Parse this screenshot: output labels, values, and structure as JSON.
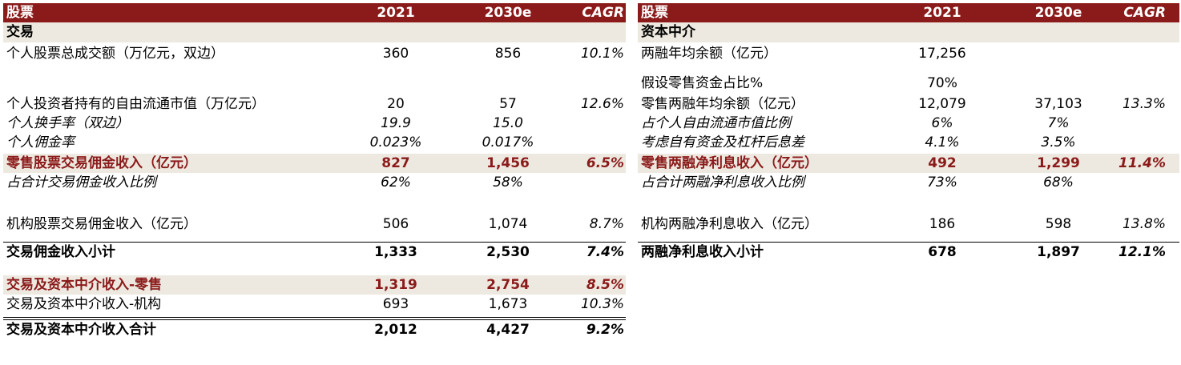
{
  "left": {
    "header": {
      "label": "股票",
      "y1": "2021",
      "y2": "2030e",
      "cagr": "CAGR"
    },
    "section": "交易",
    "rows": [
      {
        "label": "个人股票总成交额（万亿元，双边）",
        "v1": "360",
        "v2": "856",
        "cagr": "10.1%"
      },
      {
        "label": "个人投资者持有的自由流通市值（万亿元）",
        "v1": "20",
        "v2": "57",
        "cagr": "12.6%"
      },
      {
        "label": "个人换手率（双边）",
        "v1": "19.9",
        "v2": "15.0",
        "cagr": ""
      },
      {
        "label": "个人佣金率",
        "v1": "0.023%",
        "v2": "0.017%",
        "cagr": ""
      },
      {
        "label": "零售股票交易佣金收入（亿元）",
        "v1": "827",
        "v2": "1,456",
        "cagr": "6.5%"
      },
      {
        "label": "占合计交易佣金收入比例",
        "v1": "62%",
        "v2": "58%",
        "cagr": ""
      },
      {
        "label": "机构股票交易佣金收入（亿元）",
        "v1": "506",
        "v2": "1,074",
        "cagr": "8.7%"
      },
      {
        "label": "交易佣金收入小计",
        "v1": "1,333",
        "v2": "2,530",
        "cagr": "7.4%"
      },
      {
        "label": "交易及资本中介收入-零售",
        "v1": "1,319",
        "v2": "2,754",
        "cagr": "8.5%"
      },
      {
        "label": "交易及资本中介收入-机构",
        "v1": "693",
        "v2": "1,673",
        "cagr": "10.3%"
      },
      {
        "label": "交易及资本中介收入合计",
        "v1": "2,012",
        "v2": "4,427",
        "cagr": "9.2%"
      }
    ]
  },
  "right": {
    "header": {
      "label": "股票",
      "y1": "2021",
      "y2": "2030e",
      "cagr": "CAGR"
    },
    "section": "资本中介",
    "rows": [
      {
        "label": "两融年均余额（亿元）",
        "v1": "17,256",
        "v2": "",
        "cagr": ""
      },
      {
        "label": "假设零售资金占比%",
        "v1": "70%",
        "v2": "",
        "cagr": ""
      },
      {
        "label": "零售两融年均余额（亿元）",
        "v1": "12,079",
        "v2": "37,103",
        "cagr": "13.3%"
      },
      {
        "label": "占个人自由流通市值比例",
        "v1": "6%",
        "v2": "7%",
        "cagr": ""
      },
      {
        "label": "考虑自有资金及杠杆后息差",
        "v1": "4.1%",
        "v2": "3.5%",
        "cagr": ""
      },
      {
        "label": "零售两融净利息收入（亿元）",
        "v1": "492",
        "v2": "1,299",
        "cagr": "11.4%"
      },
      {
        "label": "占合计两融净利息收入比例",
        "v1": "73%",
        "v2": "68%",
        "cagr": ""
      },
      {
        "label": "机构两融净利息收入（亿元）",
        "v1": "186",
        "v2": "598",
        "cagr": "13.8%"
      },
      {
        "label": "两融净利息收入小计",
        "v1": "678",
        "v2": "1,897",
        "cagr": "12.1%"
      }
    ]
  }
}
